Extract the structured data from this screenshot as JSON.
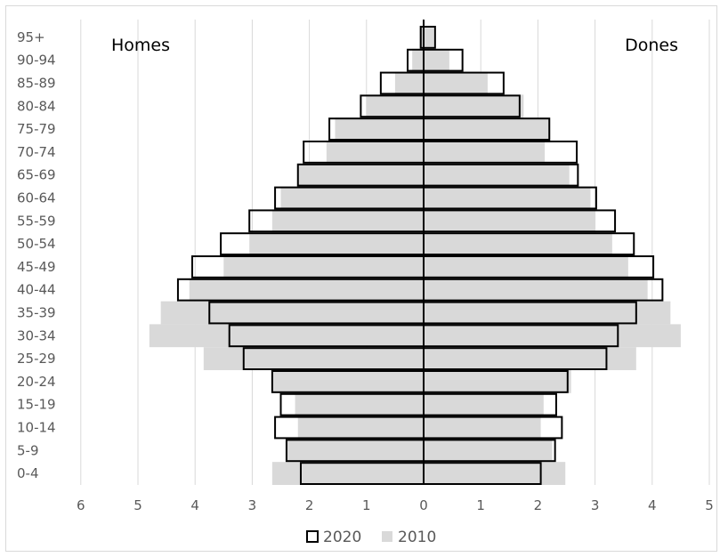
{
  "chart_data": {
    "type": "bar",
    "orientation": "horizontal-pyramid",
    "categories": [
      "0-4",
      "5-9",
      "10-14",
      "15-19",
      "20-24",
      "25-29",
      "30-34",
      "35-39",
      "40-44",
      "45-49",
      "50-54",
      "55-59",
      "60-64",
      "65-69",
      "70-74",
      "75-79",
      "80-84",
      "85-89",
      "90-94",
      "95+"
    ],
    "side_labels": {
      "left": "Homes",
      "right": "Dones"
    },
    "x_ticks": [
      "6",
      "5",
      "4",
      "3",
      "2",
      "1",
      "0",
      "1",
      "2",
      "3",
      "4",
      "5"
    ],
    "xlim": [
      -6,
      5
    ],
    "grid": true,
    "legend_position": "bottom",
    "series": [
      {
        "name": "2010",
        "color": "#d9d9d9",
        "style": "filled",
        "left": [
          2.65,
          2.4,
          2.2,
          2.25,
          2.65,
          3.85,
          4.8,
          4.6,
          4.1,
          3.5,
          3.05,
          2.65,
          2.5,
          2.2,
          1.7,
          1.55,
          1.0,
          0.5,
          0.2,
          0.08
        ],
        "right": [
          2.48,
          2.25,
          2.05,
          2.1,
          2.58,
          3.72,
          4.5,
          4.32,
          3.92,
          3.58,
          3.3,
          3.0,
          2.92,
          2.55,
          2.12,
          2.2,
          1.75,
          1.12,
          0.45,
          0.18
        ]
      },
      {
        "name": "2020",
        "color": "#000000",
        "style": "outline",
        "left": [
          2.15,
          2.4,
          2.6,
          2.5,
          2.65,
          3.15,
          3.4,
          3.75,
          4.3,
          4.05,
          3.55,
          3.05,
          2.6,
          2.2,
          2.1,
          1.65,
          1.1,
          0.75,
          0.28,
          0.05
        ],
        "right": [
          2.05,
          2.3,
          2.42,
          2.32,
          2.52,
          3.2,
          3.4,
          3.72,
          4.18,
          4.02,
          3.68,
          3.35,
          3.02,
          2.7,
          2.68,
          2.2,
          1.68,
          1.4,
          0.68,
          0.2
        ]
      }
    ]
  }
}
